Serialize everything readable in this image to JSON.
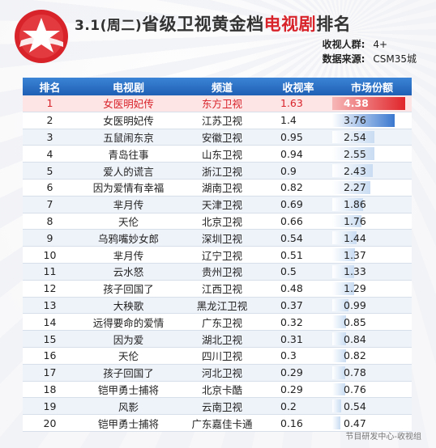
{
  "header": {
    "date": "3.1(周二)",
    "title_main": "省级卫视黄金档",
    "title_red": "电视剧",
    "title_end": "排名"
  },
  "meta": {
    "audience_label": "收视人群:",
    "audience_value": "4+",
    "source_label": "数据来源:",
    "source_value": "CSM35城"
  },
  "footer": "节目研发中心-收视组",
  "colors": {
    "header_blue": "#2a6fc4",
    "accent_red": "#d8232a"
  },
  "chart_data": {
    "type": "table",
    "columns": [
      "排名",
      "电视剧",
      "频道",
      "收视率",
      "市场份额"
    ],
    "rows": [
      [
        "1",
        "女医明妃传",
        "东方卫视",
        "1.63",
        "4.38"
      ],
      [
        "2",
        "女医明妃传",
        "江苏卫视",
        "1.4",
        "3.76"
      ],
      [
        "3",
        "五鼠闹东京",
        "安徽卫视",
        "0.95",
        "2.54"
      ],
      [
        "4",
        "青岛往事",
        "山东卫视",
        "0.94",
        "2.55"
      ],
      [
        "5",
        "爱人的谎言",
        "浙江卫视",
        "0.9",
        "2.43"
      ],
      [
        "6",
        "因为爱情有幸福",
        "湖南卫视",
        "0.82",
        "2.27"
      ],
      [
        "7",
        "芈月传",
        "天津卫视",
        "0.69",
        "1.86"
      ],
      [
        "8",
        "天伦",
        "北京卫视",
        "0.66",
        "1.76"
      ],
      [
        "9",
        "乌鸦嘴妙女郎",
        "深圳卫视",
        "0.54",
        "1.44"
      ],
      [
        "10",
        "芈月传",
        "辽宁卫视",
        "0.51",
        "1.37"
      ],
      [
        "11",
        "云水怒",
        "贵州卫视",
        "0.5",
        "1.33"
      ],
      [
        "12",
        "孩子回国了",
        "江西卫视",
        "0.48",
        "1.29"
      ],
      [
        "13",
        "大秧歌",
        "黑龙江卫视",
        "0.37",
        "0.99"
      ],
      [
        "14",
        "远得要命的爱情",
        "广东卫视",
        "0.32",
        "0.85"
      ],
      [
        "15",
        "因为爱",
        "湖北卫视",
        "0.31",
        "0.84"
      ],
      [
        "16",
        "天伦",
        "四川卫视",
        "0.3",
        "0.82"
      ],
      [
        "17",
        "孩子回国了",
        "河北卫视",
        "0.29",
        "0.78"
      ],
      [
        "18",
        "铠甲勇士捕将",
        "北京卡酷",
        "0.29",
        "0.76"
      ],
      [
        "19",
        "风影",
        "云南卫视",
        "0.2",
        "0.54"
      ],
      [
        "20",
        "铠甲勇士捕将",
        "广东嘉佳卡通",
        "0.16",
        "0.47"
      ]
    ]
  }
}
